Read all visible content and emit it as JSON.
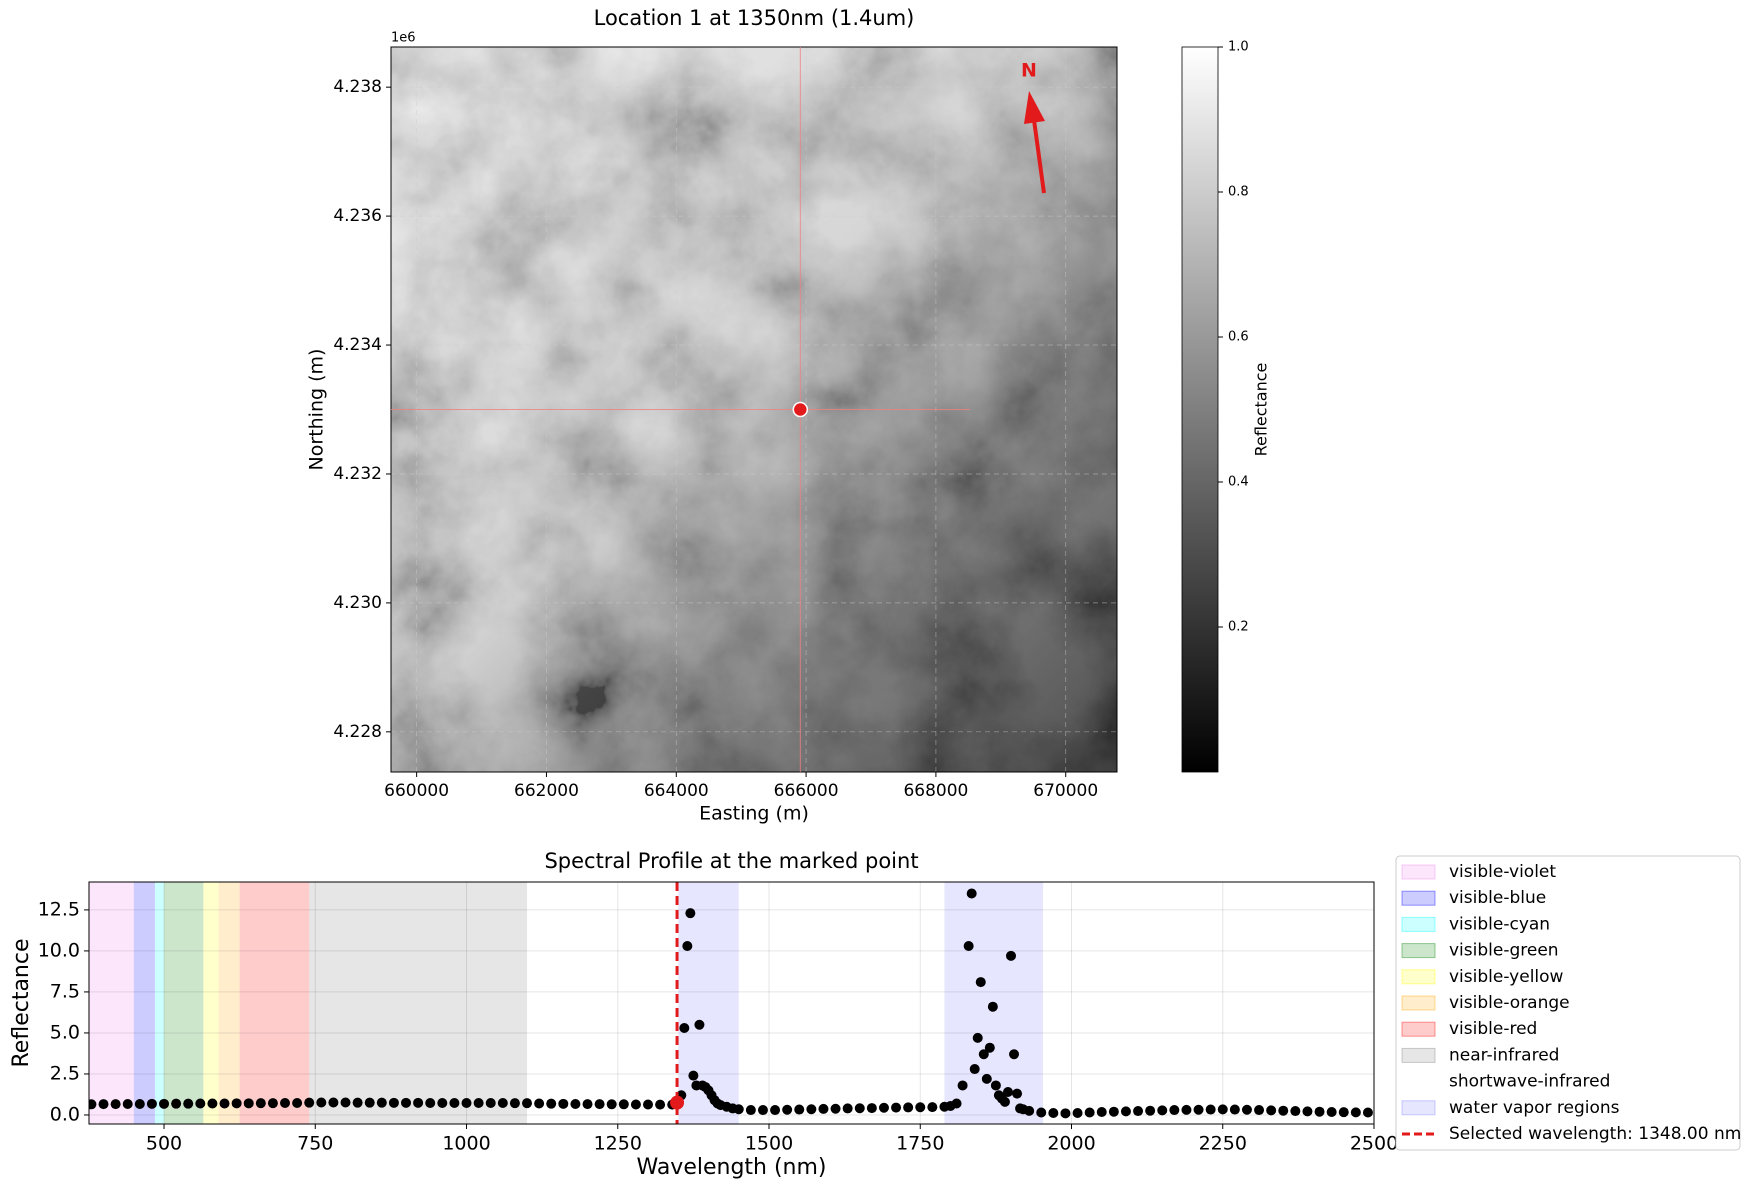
{
  "chart_data": [
    {
      "type": "heatmap",
      "title": "Location 1 at 1350nm (1.4um)",
      "xlabel": "Easting (m)",
      "ylabel": "Northing (m)",
      "xlim": [
        659605,
        670790
      ],
      "ylim": [
        4227377,
        4238623
      ],
      "xticks": [
        660000,
        662000,
        664000,
        666000,
        668000,
        670000
      ],
      "yticks": [
        {
          "value": 4228000,
          "label": "4.228"
        },
        {
          "value": 4230000,
          "label": "4.230"
        },
        {
          "value": 4232000,
          "label": "4.232"
        },
        {
          "value": 4234000,
          "label": "4.234"
        },
        {
          "value": 4236000,
          "label": "4.236"
        },
        {
          "value": 4238000,
          "label": "4.238"
        }
      ],
      "y_offset_label": "1e6",
      "cmap": "gray",
      "marker": {
        "x": 665911,
        "y": 4233000,
        "color": "#e31a1c"
      },
      "north_label": "N",
      "north_color": "#e31a1c",
      "colorbar": {
        "label": "Reflectance",
        "lim": [
          0,
          1
        ],
        "ticks": [
          0.2,
          0.4,
          0.6,
          0.8,
          {
            "value": 1,
            "label": "1.0"
          }
        ]
      }
    },
    {
      "type": "scatter",
      "title": "Spectral Profile at the marked point",
      "xlabel": "Wavelength (nm)",
      "ylabel": "Reflectance",
      "xlim": [
        376,
        2500
      ],
      "ylim": [
        -0.55,
        14.2
      ],
      "xticks": [
        500,
        750,
        1000,
        1250,
        1500,
        1750,
        2000,
        2250,
        2500
      ],
      "yticks": [
        {
          "value": 0,
          "label": "0.0"
        },
        2.5,
        {
          "value": 5,
          "label": "5.0"
        },
        7.5,
        {
          "value": 10,
          "label": "10.0"
        },
        12.5
      ],
      "grid": true,
      "color": "#000000",
      "band_alpha": 0.2,
      "bands": [
        {
          "name": "visible-violet",
          "range": [
            376,
            450
          ],
          "color": "#ee82ee"
        },
        {
          "name": "visible-blue",
          "range": [
            450,
            485
          ],
          "color": "#0000ff"
        },
        {
          "name": "visible-cyan",
          "range": [
            485,
            500
          ],
          "color": "#00ffff"
        },
        {
          "name": "visible-green",
          "range": [
            500,
            565
          ],
          "color": "#008000"
        },
        {
          "name": "visible-yellow",
          "range": [
            565,
            590
          ],
          "color": "#ffff00"
        },
        {
          "name": "visible-orange",
          "range": [
            590,
            625
          ],
          "color": "#ffa500"
        },
        {
          "name": "visible-red",
          "range": [
            625,
            740
          ],
          "color": "#ff0000"
        },
        {
          "name": "near-infrared",
          "range": [
            740,
            1100
          ],
          "color": "#808080"
        },
        {
          "name": "shortwave-infrared",
          "range": [
            1100,
            2500
          ],
          "color": "#ffffff"
        },
        {
          "name": "water vapor regions",
          "ranges": [
            [
              1350,
              1450
            ],
            [
              1790,
              1953
            ]
          ],
          "color": "#8080ff"
        }
      ],
      "selected_label": "Selected wavelength: 1348.00 nm",
      "selected_wavelength": 1348,
      "selected_value": 0.75,
      "selected_color": "#e31a1c",
      "legend_loc": "outside right",
      "x": [
        380,
        400,
        420,
        440,
        460,
        480,
        500,
        520,
        540,
        560,
        580,
        600,
        620,
        640,
        660,
        680,
        700,
        720,
        740,
        760,
        780,
        800,
        820,
        840,
        860,
        880,
        900,
        920,
        940,
        960,
        980,
        1000,
        1020,
        1040,
        1060,
        1080,
        1100,
        1120,
        1140,
        1160,
        1180,
        1200,
        1220,
        1240,
        1260,
        1280,
        1300,
        1320,
        1340,
        1355,
        1360,
        1365,
        1370,
        1375,
        1380,
        1385,
        1390,
        1395,
        1400,
        1405,
        1410,
        1415,
        1420,
        1430,
        1440,
        1450,
        1470,
        1490,
        1510,
        1530,
        1550,
        1570,
        1590,
        1610,
        1630,
        1650,
        1670,
        1690,
        1710,
        1730,
        1750,
        1770,
        1790,
        1800,
        1810,
        1820,
        1830,
        1835,
        1840,
        1845,
        1850,
        1855,
        1860,
        1865,
        1870,
        1875,
        1880,
        1885,
        1890,
        1895,
        1900,
        1905,
        1910,
        1915,
        1920,
        1930,
        1950,
        1970,
        1990,
        2010,
        2030,
        2050,
        2070,
        2090,
        2110,
        2130,
        2150,
        2170,
        2190,
        2210,
        2230,
        2250,
        2270,
        2290,
        2310,
        2330,
        2350,
        2370,
        2390,
        2410,
        2430,
        2450,
        2470,
        2490
      ],
      "values": [
        0.65,
        0.66,
        0.66,
        0.67,
        0.67,
        0.68,
        0.68,
        0.69,
        0.69,
        0.7,
        0.7,
        0.7,
        0.71,
        0.71,
        0.72,
        0.72,
        0.73,
        0.73,
        0.75,
        0.76,
        0.76,
        0.76,
        0.75,
        0.75,
        0.75,
        0.74,
        0.74,
        0.74,
        0.73,
        0.73,
        0.73,
        0.73,
        0.73,
        0.73,
        0.73,
        0.72,
        0.72,
        0.7,
        0.69,
        0.68,
        0.67,
        0.66,
        0.66,
        0.65,
        0.65,
        0.64,
        0.64,
        0.63,
        0.63,
        1.2,
        5.3,
        10.3,
        12.3,
        2.4,
        1.8,
        5.5,
        1.8,
        1.7,
        1.5,
        1.2,
        0.9,
        0.7,
        0.6,
        0.5,
        0.4,
        0.35,
        0.3,
        0.3,
        0.3,
        0.32,
        0.33,
        0.35,
        0.37,
        0.38,
        0.4,
        0.41,
        0.42,
        0.44,
        0.45,
        0.46,
        0.47,
        0.48,
        0.5,
        0.55,
        0.7,
        1.8,
        10.3,
        13.5,
        2.8,
        4.7,
        8.1,
        3.7,
        2.2,
        4.1,
        6.6,
        1.8,
        1.2,
        1.0,
        0.8,
        1.4,
        9.7,
        3.7,
        1.3,
        0.4,
        0.35,
        0.25,
        0.15,
        0.12,
        0.1,
        0.12,
        0.15,
        0.18,
        0.2,
        0.22,
        0.24,
        0.26,
        0.28,
        0.3,
        0.31,
        0.32,
        0.33,
        0.34,
        0.33,
        0.32,
        0.3,
        0.28,
        0.26,
        0.24,
        0.22,
        0.2,
        0.18,
        0.17,
        0.16,
        0.15
      ]
    }
  ]
}
